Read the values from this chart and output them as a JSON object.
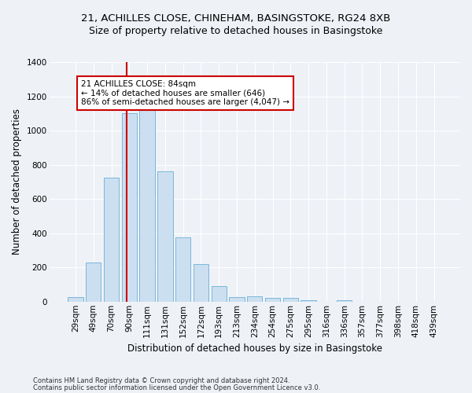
{
  "title1": "21, ACHILLES CLOSE, CHINEHAM, BASINGSTOKE, RG24 8XB",
  "title2": "Size of property relative to detached houses in Basingstoke",
  "xlabel": "Distribution of detached houses by size in Basingstoke",
  "ylabel": "Number of detached properties",
  "categories": [
    "29sqm",
    "49sqm",
    "70sqm",
    "90sqm",
    "111sqm",
    "131sqm",
    "152sqm",
    "172sqm",
    "193sqm",
    "213sqm",
    "234sqm",
    "254sqm",
    "275sqm",
    "295sqm",
    "316sqm",
    "336sqm",
    "357sqm",
    "377sqm",
    "398sqm",
    "418sqm",
    "439sqm"
  ],
  "values": [
    25,
    230,
    725,
    1100,
    1120,
    760,
    375,
    220,
    90,
    25,
    30,
    20,
    20,
    10,
    0,
    10,
    0,
    0,
    0,
    0,
    0
  ],
  "bar_color": "#ccdff0",
  "bar_edge_color": "#6aaed6",
  "vline_color": "#cc0000",
  "annotation_text": "21 ACHILLES CLOSE: 84sqm\n← 14% of detached houses are smaller (646)\n86% of semi-detached houses are larger (4,047) →",
  "annotation_box_color": "#ffffff",
  "annotation_box_edge": "#cc0000",
  "ylim": [
    0,
    1400
  ],
  "yticks": [
    0,
    200,
    400,
    600,
    800,
    1000,
    1200,
    1400
  ],
  "footer1": "Contains HM Land Registry data © Crown copyright and database right 2024.",
  "footer2": "Contains public sector information licensed under the Open Government Licence v3.0.",
  "bg_color": "#eef2f7",
  "plot_bg_color": "#eef2f7",
  "title_fontsize": 9.5,
  "subtitle_fontsize": 9,
  "tick_fontsize": 7.5,
  "label_fontsize": 8.5,
  "footer_fontsize": 6,
  "annot_fontsize": 7.5
}
